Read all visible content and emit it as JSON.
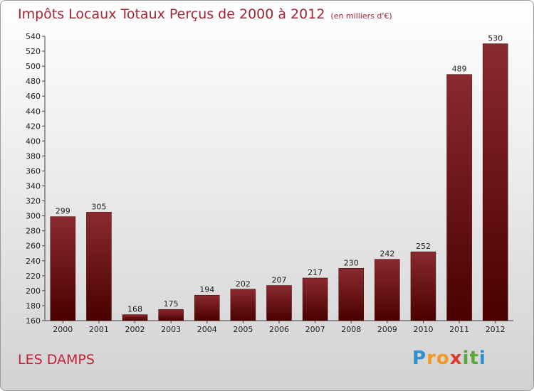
{
  "title": "Impôts Locaux Totaux Perçus de 2000 à 2012",
  "subtitle": "(en milliers d'€)",
  "city": "LES DAMPS",
  "logo": {
    "letters": [
      "P",
      "r",
      "o",
      "x",
      "i",
      "t",
      "i"
    ],
    "colors": [
      "#2e8fd1",
      "#f39a1e",
      "#f39a1e",
      "#e23a2a",
      "#5aa83a",
      "#5aa83a",
      "#2e8fd1"
    ]
  },
  "chart_data": {
    "type": "bar",
    "categories": [
      "2000",
      "2001",
      "2002",
      "2003",
      "2004",
      "2005",
      "2006",
      "2007",
      "2008",
      "2009",
      "2010",
      "2011",
      "2012"
    ],
    "values": [
      299,
      305,
      168,
      175,
      194,
      202,
      207,
      217,
      230,
      242,
      252,
      489,
      530
    ],
    "title": "Impôts Locaux Totaux Perçus de 2000 à 2012",
    "xlabel": "",
    "ylabel": "",
    "ylim": [
      160,
      540
    ],
    "yticks": [
      160,
      180,
      200,
      220,
      240,
      260,
      280,
      300,
      320,
      340,
      360,
      380,
      400,
      420,
      440,
      460,
      480,
      500,
      520,
      540
    ],
    "grid": false,
    "bar_color": "#7a1a1f"
  }
}
